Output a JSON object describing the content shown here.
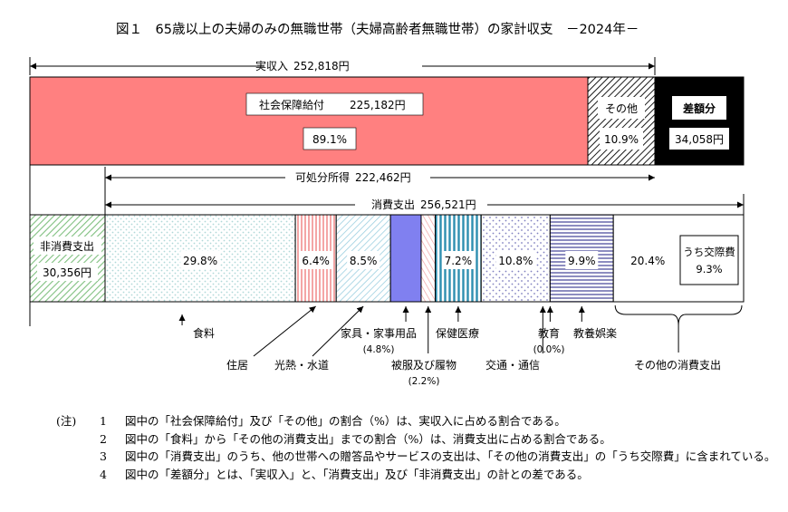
{
  "chart_data": {
    "type": "bar",
    "title": "図１　65歳以上の夫婦のみの無職世帯（夫婦高齢者無職世帯）の家計収支　－2024年－",
    "income": {
      "label": "実収入",
      "value_text": "252,818円",
      "value": 252818,
      "segments": [
        {
          "key": "social",
          "label": "社会保障給付",
          "value_text": "225,182円",
          "value": 225182,
          "pct_text": "89.1%",
          "pct": 89.1
        },
        {
          "key": "other",
          "label": "その他",
          "pct_text": "10.9%",
          "pct": 10.9
        },
        {
          "key": "deficit",
          "label": "差額分",
          "value_text": "34,058円",
          "value": 34058
        }
      ]
    },
    "disposable": {
      "label": "可処分所得",
      "value_text": "222,462円",
      "value": 222462
    },
    "consumption": {
      "label": "消費支出",
      "value_text": "256,521円",
      "value": 256521
    },
    "non_consumption": {
      "label": "非消費支出",
      "value_text": "30,356円",
      "value": 30356
    },
    "expenditure_segments": [
      {
        "key": "food",
        "label": "食料",
        "pct_text": "29.8%",
        "pct": 29.8
      },
      {
        "key": "housing",
        "label": "住居",
        "pct_text": "6.4%",
        "pct": 6.4
      },
      {
        "key": "utilities",
        "label": "光熱・水道",
        "pct_text": "8.5%",
        "pct": 8.5
      },
      {
        "key": "furniture",
        "label": "家具・家事用品",
        "pct_text": "(4.8%)",
        "pct": 4.8
      },
      {
        "key": "clothing",
        "label": "被服及び履物",
        "pct_text": "(2.2%)",
        "pct": 2.2
      },
      {
        "key": "medical",
        "label": "保健医療",
        "pct_text": "7.2%",
        "pct": 7.2
      },
      {
        "key": "transport",
        "label": "交通・通信",
        "pct_text": "10.8%",
        "pct": 10.8
      },
      {
        "key": "education",
        "label": "教育",
        "pct_text": "(0.0%)",
        "pct": 0.0
      },
      {
        "key": "recreation",
        "label": "教養娯楽",
        "pct_text": "9.9%",
        "pct": 9.9
      },
      {
        "key": "misc",
        "label": "その他の消費支出",
        "pct_text": "20.4%",
        "pct": 20.4
      }
    ],
    "social_expenses": {
      "label": "うち交際費",
      "pct_text": "9.3%",
      "pct": 9.3
    }
  },
  "notes": {
    "header": "(注)",
    "items": [
      {
        "num": "1",
        "text": "図中の「社会保障給付」及び「その他」の割合（%）は、実収入に占める割合である。"
      },
      {
        "num": "2",
        "text": "図中の「食料」から「その他の消費支出」までの割合（%）は、消費支出に占める割合である。"
      },
      {
        "num": "3",
        "text": "図中の「消費支出」のうち、他の世帯への贈答品やサービスの支出は、「その他の消費支出」の「うち交際費」に含まれている。"
      },
      {
        "num": "4",
        "text": "図中の「差額分」とは、「実収入」と、「消費支出」及び「非消費支出」の計との差である。"
      }
    ]
  },
  "colors": {
    "social": "#ff8080",
    "deficit": "#000000",
    "food_dots": "#bfdede",
    "housing_stripe": "#f08080",
    "utilities_hatch": "#9ccfe0",
    "furniture": "#8080f0",
    "clothing_stripe": "#f0a0a0",
    "medical_stripe": "#2e8fb0",
    "transport_dots": "#8080c0",
    "recreation_stripe": "#7070b0",
    "nonconsumption_hatch": "#80c080"
  }
}
